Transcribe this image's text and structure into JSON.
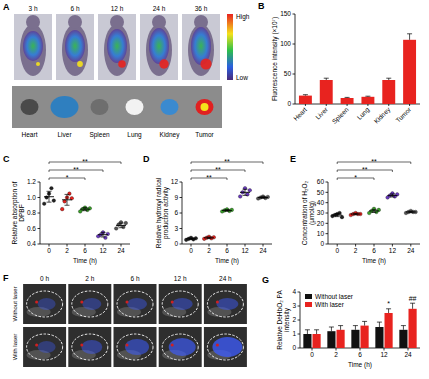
{
  "panel_a": {
    "letter": "A",
    "times": [
      "3 h",
      "6 h",
      "12 h",
      "24 h",
      "36 h"
    ],
    "scale_high": "High",
    "scale_low": "Low",
    "organs": [
      "Heart",
      "Liver",
      "Spleen",
      "Lung",
      "Kidney",
      "Tumor"
    ]
  },
  "panel_f": {
    "letter": "F",
    "times": [
      "0 h",
      "2 h",
      "6 h",
      "12 h",
      "24 h"
    ],
    "rows": [
      "Without laser",
      "With laser"
    ]
  },
  "chart_data": [
    {
      "panel": "B",
      "type": "bar",
      "y_label": "Fluorescence intensity (×10⁷)",
      "categories": [
        "Heart",
        "Liver",
        "Spleen",
        "Lung",
        "Kidney",
        "Tumor"
      ],
      "values": [
        14,
        40,
        10,
        12,
        40,
        107
      ],
      "errors": [
        1.5,
        3,
        1,
        1,
        3,
        10
      ],
      "color": "#e8231f",
      "ylim": [
        0,
        150
      ],
      "yticks": [
        0,
        50,
        100,
        150
      ]
    },
    {
      "panel": "C",
      "type": "scatter",
      "x_label": "Time (h)",
      "y_label": "Relative absorption of DPBF",
      "categories": [
        "0",
        "2",
        "6",
        "12",
        "24"
      ],
      "points": [
        [
          0.92,
          1.0,
          1.05,
          1.12,
          0.96
        ],
        [
          0.85,
          0.95,
          1.0,
          1.05,
          0.99
        ],
        [
          0.82,
          0.85,
          0.87,
          0.84,
          0.86
        ],
        [
          0.5,
          0.52,
          0.55,
          0.48,
          0.53
        ],
        [
          0.6,
          0.65,
          0.68,
          0.62,
          0.67
        ]
      ],
      "values": [
        1.01,
        0.97,
        0.85,
        0.52,
        0.64
      ],
      "errors": [
        0.07,
        0.07,
        0.02,
        0.03,
        0.03
      ],
      "colors": [
        "#222222",
        "#e8231f",
        "#3aa02a",
        "#6a3bbf",
        "#555555"
      ],
      "ylim": [
        0.4,
        1.2
      ],
      "yticks": [
        0.4,
        0.6,
        0.8,
        {
          "value": 1,
          "label": "1.0"
        },
        1.2
      ],
      "annotations": [
        {
          "text": "*",
          "between": [
            "0",
            "6"
          ]
        },
        {
          "text": "**",
          "between": [
            "0",
            "12"
          ]
        },
        {
          "text": "**",
          "between": [
            "0",
            "24"
          ]
        }
      ]
    },
    {
      "panel": "D",
      "type": "scatter",
      "x_label": "Time (h)",
      "y_label": "Relative hydroxyl radical production activity",
      "categories": [
        "0",
        "2",
        "6",
        "12",
        "24"
      ],
      "points": [
        [
          0.8,
          1.0,
          1.2,
          0.9,
          1.1
        ],
        [
          1.0,
          1.2,
          1.4,
          1.1,
          1.3
        ],
        [
          6.3,
          6.5,
          6.7,
          6.4,
          6.6
        ],
        [
          9.2,
          10.0,
          10.8,
          9.6,
          10.4
        ],
        [
          8.8,
          9.0,
          9.2,
          8.9,
          9.1
        ]
      ],
      "values": [
        1.0,
        1.2,
        6.5,
        10.0,
        9.0
      ],
      "errors": [
        0.16,
        0.16,
        0.16,
        0.6,
        0.16
      ],
      "colors": [
        "#222222",
        "#e8231f",
        "#3aa02a",
        "#6a3bbf",
        "#555555"
      ],
      "ylim": [
        0,
        12
      ],
      "yticks": [
        0,
        3,
        6,
        9,
        12
      ],
      "annotations": [
        {
          "text": "**",
          "between": [
            "0",
            "6"
          ]
        },
        {
          "text": "**",
          "between": [
            "0",
            "12"
          ]
        },
        {
          "text": "**",
          "between": [
            "0",
            "24"
          ]
        }
      ]
    },
    {
      "panel": "E",
      "type": "scatter",
      "x_label": "Time (h)",
      "y_label": "Concentration of H₂O₂ (μmol/g)",
      "categories": [
        "0",
        "2",
        "6",
        "12",
        "24"
      ],
      "points": [
        [
          27,
          28,
          29,
          30,
          26
        ],
        [
          28,
          29,
          30,
          29,
          29
        ],
        [
          30,
          32,
          34,
          31,
          33
        ],
        [
          45,
          47,
          49,
          46,
          48
        ],
        [
          30,
          31,
          32,
          31,
          31
        ]
      ],
      "values": [
        28,
        29,
        32,
        47,
        31
      ],
      "errors": [
        1.5,
        0.7,
        1.5,
        1.5,
        0.7
      ],
      "colors": [
        "#222222",
        "#e8231f",
        "#3aa02a",
        "#6a3bbf",
        "#555555"
      ],
      "ylim": [
        0,
        60
      ],
      "yticks": [
        0,
        10,
        20,
        30,
        40,
        50,
        60
      ],
      "annotations": [
        {
          "text": "*",
          "between": [
            "0",
            "6"
          ]
        },
        {
          "text": "**",
          "between": [
            "0",
            "12"
          ]
        },
        {
          "text": "**",
          "between": [
            "0",
            "24"
          ]
        }
      ]
    },
    {
      "panel": "G",
      "type": "bar",
      "x_label": "Time (h)",
      "y_label": "Relative DeHbO₂ PA intensity",
      "categories": [
        "0",
        "2",
        "6",
        "12",
        "24"
      ],
      "series": [
        {
          "name": "Without laser",
          "color": "#111111",
          "values": [
            1,
            1.2,
            1.3,
            1.5,
            1.3
          ],
          "errors": [
            0.3,
            0.3,
            0.3,
            0.35,
            0.3
          ]
        },
        {
          "name": "With laser",
          "color": "#e8231f",
          "values": [
            1,
            1.3,
            1.6,
            2.5,
            2.8
          ],
          "errors": [
            0.3,
            0.3,
            0.3,
            0.3,
            0.4
          ]
        }
      ],
      "ylim": [
        0,
        4
      ],
      "yticks": [
        0,
        1,
        2,
        3,
        4
      ],
      "legend": "upper left",
      "annotations": [
        {
          "text": "*",
          "category": "12"
        },
        {
          "text": "##",
          "category": "24"
        }
      ]
    }
  ]
}
